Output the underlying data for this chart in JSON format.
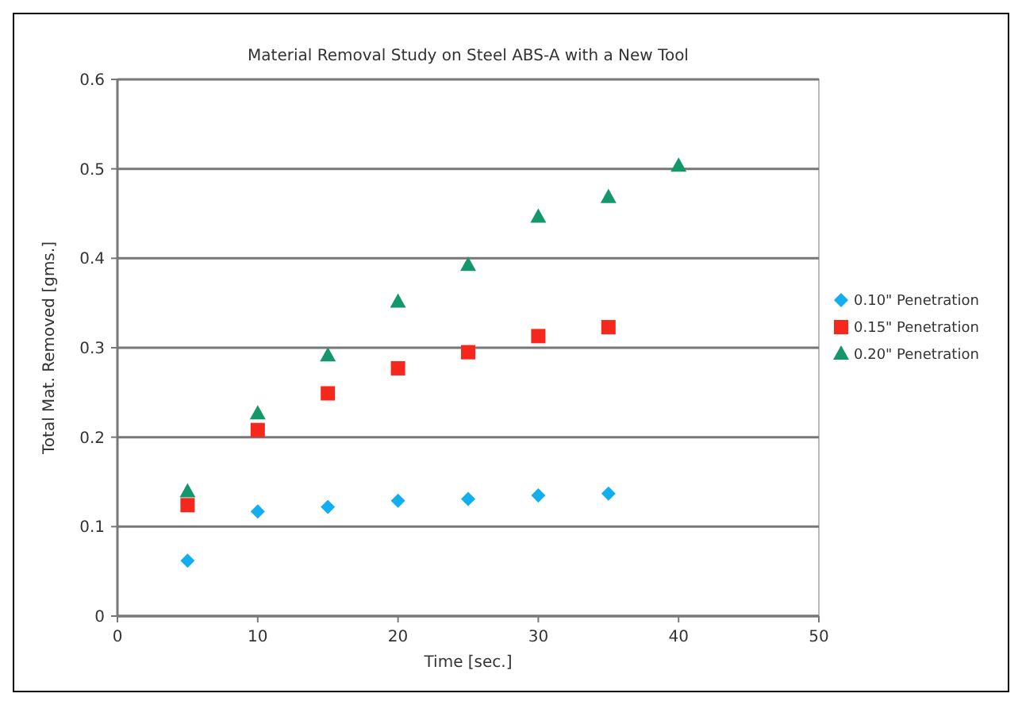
{
  "chart_data": {
    "type": "scatter",
    "title": "Material Removal Study on Steel ABS-A with a New Tool",
    "xlabel": "Time [sec.]",
    "ylabel": "Total Mat. Removed [gms.]",
    "xlim": [
      0,
      50
    ],
    "xticks": [
      0,
      10,
      20,
      30,
      40,
      50
    ],
    "ylim": [
      0,
      0.6
    ],
    "yticks": [
      0,
      0.1,
      0.2,
      0.3,
      0.4,
      0.5,
      0.6
    ],
    "grid": "y",
    "legend": "right",
    "series": [
      {
        "name": "0.10\" Penetration",
        "color": "#12aef0",
        "marker": "diamond",
        "x": [
          5,
          10,
          15,
          20,
          25,
          30,
          35
        ],
        "values": [
          0.062,
          0.117,
          0.122,
          0.129,
          0.131,
          0.135,
          0.137
        ]
      },
      {
        "name": "0.15\" Penetration",
        "color": "#f5281e",
        "marker": "square",
        "x": [
          5,
          10,
          15,
          20,
          25,
          30,
          35
        ],
        "values": [
          0.124,
          0.208,
          0.249,
          0.277,
          0.295,
          0.313,
          0.323
        ]
      },
      {
        "name": "0.20\" Penetration",
        "color": "#14986a",
        "marker": "triangle",
        "x": [
          5,
          10,
          15,
          20,
          25,
          30,
          35,
          40
        ],
        "values": [
          0.139,
          0.226,
          0.291,
          0.351,
          0.392,
          0.446,
          0.468,
          0.503
        ]
      }
    ]
  }
}
